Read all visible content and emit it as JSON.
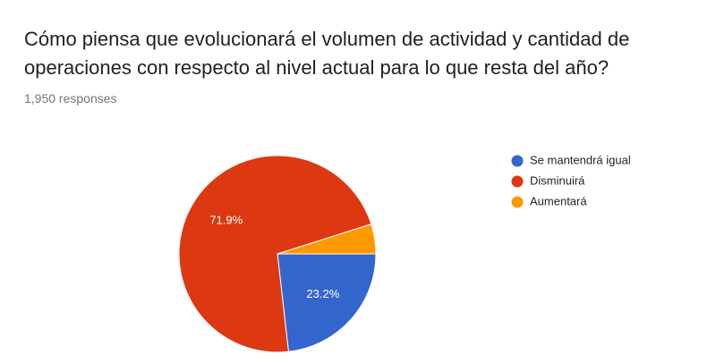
{
  "chart_data": {
    "type": "pie",
    "title": "Cómo piensa que evolucionará el volumen de actividad y cantidad de operaciones con respecto al nivel actual para lo que resta del año?",
    "subtitle": "1,950 responses",
    "categories": [
      "Se mantendrá igual",
      "Disminuirá",
      "Aumentará"
    ],
    "values": [
      23.2,
      71.9,
      4.9
    ],
    "value_labels": [
      "23.2%",
      "71.9%",
      null
    ],
    "colors": [
      "#3366cc",
      "#dc3912",
      "#ff9900"
    ],
    "legend": "right"
  }
}
